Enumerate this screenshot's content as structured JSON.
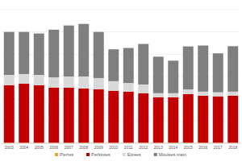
{
  "chart_data": {
    "type": "bar",
    "stacked": true,
    "grid": true,
    "legend": "bottom",
    "tick_labels": "x",
    "categories": [
      "2003",
      "2004",
      "2005",
      "2006",
      "2007",
      "2008",
      "2009",
      "2010",
      "2011",
      "2012",
      "2013",
      "2014",
      "2015",
      "2016",
      "2017",
      "2018"
    ],
    "ylim": [
      0,
      60
    ],
    "yticks": [
      0,
      10,
      20,
      30,
      40,
      50,
      60
    ],
    "series": [
      {
        "name": "Pierres",
        "color": "#e8a33c",
        "values": [
          0.3,
          0.3,
          0.3,
          0.3,
          0.3,
          0.3,
          0.3,
          0.3,
          0.3,
          0.3,
          0.3,
          0.3,
          0.3,
          0.3,
          0.3,
          0.3
        ]
      },
      {
        "name": "Perforées",
        "color": "#c00000",
        "values": [
          25.8,
          26.5,
          25.8,
          24.7,
          24.7,
          24.3,
          24.0,
          23.3,
          22.9,
          22.2,
          20.4,
          20.4,
          21.8,
          21.1,
          20.8,
          21.1
        ]
      },
      {
        "name": "Etirées",
        "color": "#d9d9d9",
        "values": [
          4.6,
          4.3,
          4.6,
          4.6,
          5.0,
          5.4,
          5.0,
          4.3,
          3.9,
          3.9,
          1.8,
          1.8,
          2.1,
          1.8,
          1.8,
          1.8
        ]
      },
      {
        "name": "Moulées main",
        "color": "#7f7f7f",
        "values": [
          19.3,
          18.9,
          18.6,
          21.4,
          22.9,
          23.6,
          20.7,
          14.3,
          15.7,
          18.2,
          16.4,
          14.6,
          19.3,
          20.7,
          17.5,
          20.4
        ]
      }
    ]
  }
}
